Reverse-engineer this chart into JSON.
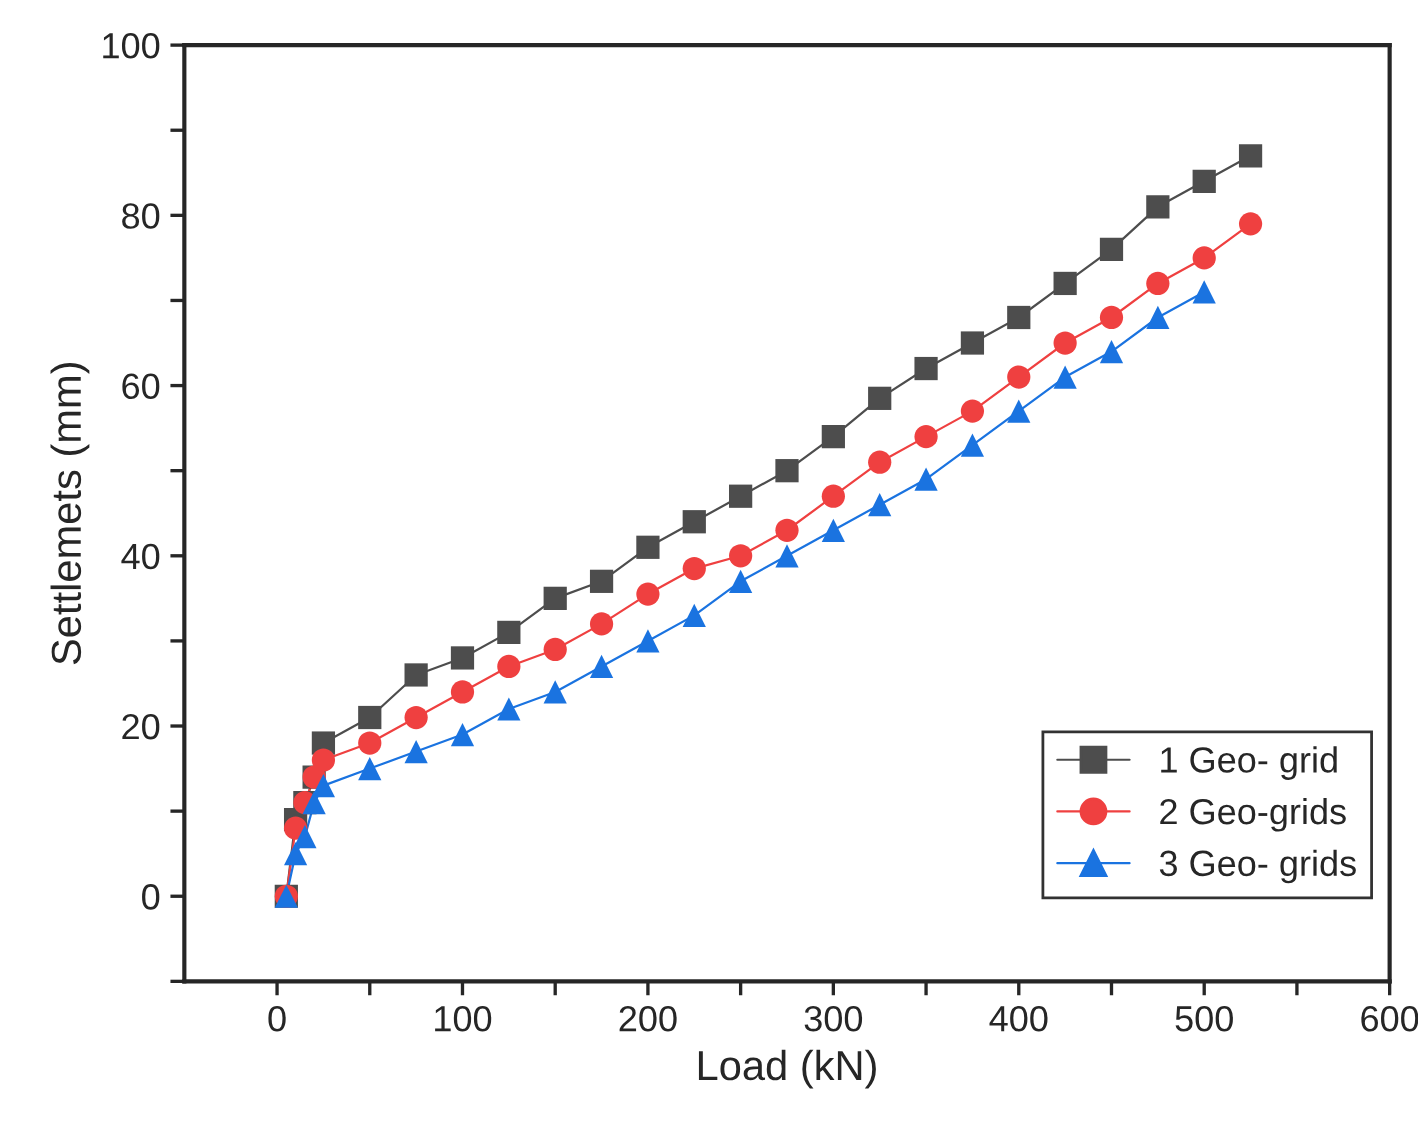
{
  "chart_data": {
    "type": "line",
    "xlabel": "Load (kN)",
    "ylabel": "Settlemets (mm)",
    "xlim": [
      -50,
      600
    ],
    "xticks": [
      0,
      {
        "value": 50,
        "label": null
      },
      100,
      {
        "value": 150,
        "label": null
      },
      200,
      {
        "value": 250,
        "label": null
      },
      300,
      {
        "value": 350,
        "label": null
      },
      400,
      {
        "value": 450,
        "label": null
      },
      500,
      {
        "value": 550,
        "label": null
      },
      600
    ],
    "ylim": [
      -10,
      100
    ],
    "yticks": [
      {
        "value": -10,
        "label": null
      },
      0,
      {
        "value": 10,
        "label": null
      },
      20,
      {
        "value": 30,
        "label": null
      },
      40,
      {
        "value": 50,
        "label": null
      },
      60,
      {
        "value": 70,
        "label": null
      },
      80,
      {
        "value": 90,
        "label": null
      },
      100
    ],
    "grid": false,
    "legend": "bottom right",
    "series": [
      {
        "name": "1 Geo- grid",
        "color": "#4d4d4d",
        "marker": "square",
        "x": [
          5,
          10,
          15,
          20,
          25,
          50,
          75,
          100,
          125,
          150,
          175,
          200,
          225,
          250,
          275,
          300,
          325,
          350,
          375,
          400,
          425,
          450,
          475,
          500,
          525
        ],
        "values": [
          0,
          9,
          11,
          14,
          18,
          21,
          26,
          28,
          31,
          35,
          37,
          41,
          44,
          47,
          50,
          54,
          58.5,
          62,
          65,
          68,
          72,
          76,
          81,
          84,
          87
        ]
      },
      {
        "name": "2 Geo-grids",
        "color": "#ef4040",
        "marker": "circle",
        "x": [
          5,
          10,
          15,
          20,
          25,
          50,
          75,
          100,
          125,
          150,
          175,
          200,
          225,
          250,
          275,
          300,
          325,
          350,
          375,
          400,
          425,
          450,
          475,
          500,
          525
        ],
        "values": [
          0,
          8,
          11,
          14,
          16,
          18,
          21,
          24,
          27,
          29,
          32,
          35.5,
          38.5,
          40,
          43,
          47,
          51,
          54,
          57,
          61,
          65,
          68,
          72,
          75,
          79
        ]
      },
      {
        "name": "3 Geo- grids",
        "color": "#1a73e0",
        "marker": "triangle",
        "x": [
          5,
          10,
          15,
          20,
          25,
          50,
          75,
          100,
          125,
          150,
          175,
          200,
          225,
          250,
          275,
          300,
          325,
          350,
          375,
          400,
          425,
          450,
          475,
          500
        ],
        "values": [
          0,
          5,
          7,
          11,
          13,
          15,
          17,
          19,
          22,
          24,
          27,
          30,
          33,
          37,
          40,
          43,
          46,
          49,
          53,
          57,
          61,
          64,
          68,
          71
        ]
      }
    ]
  }
}
